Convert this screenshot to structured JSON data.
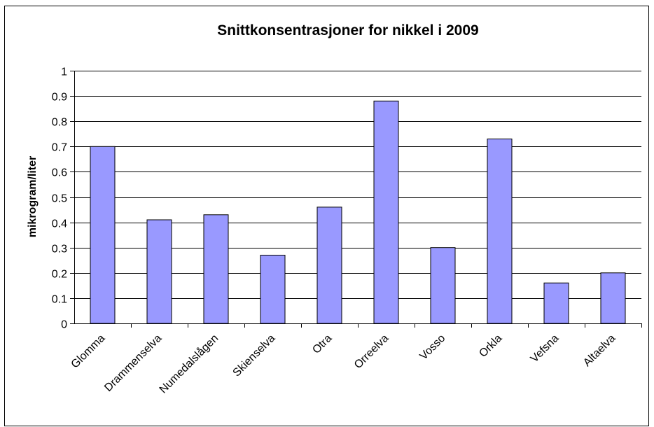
{
  "chart_data": {
    "type": "bar",
    "title": "Snittkonsentrasjoner for nikkel i 2009",
    "xlabel": "",
    "ylabel": "mikrogram/liter",
    "categories": [
      "Glomma",
      "Drammenselva",
      "Numedalslågen",
      "Skienselva",
      "Otra",
      "Orreelva",
      "Vosso",
      "Orkla",
      "Vefsna",
      "Altaelva"
    ],
    "values": [
      0.7,
      0.41,
      0.43,
      0.27,
      0.46,
      0.88,
      0.3,
      0.73,
      0.16,
      0.2
    ],
    "ylim": [
      0,
      1
    ],
    "yticks": [
      "0",
      "0.1",
      "0.2",
      "0.3",
      "0.4",
      "0.5",
      "0.6",
      "0.7",
      "0.8",
      "0.9",
      "1"
    ],
    "grid": true,
    "legend": "none",
    "bar_color": "#9999ff",
    "bar_border_color": "#000000"
  }
}
